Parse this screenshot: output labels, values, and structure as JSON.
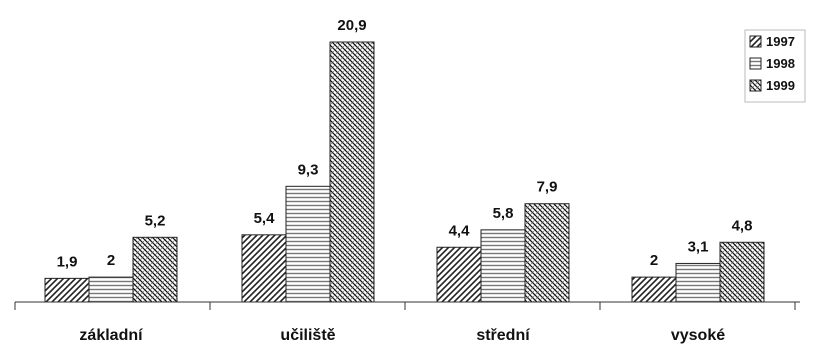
{
  "chart_data": {
    "type": "bar",
    "categories": [
      "základní",
      "učiliště",
      "střední",
      "vysoké"
    ],
    "series": [
      {
        "name": "1997",
        "values": [
          1.9,
          5.4,
          4.4,
          2
        ],
        "labels": [
          "1,9",
          "5,4",
          "4,4",
          "2"
        ]
      },
      {
        "name": "1998",
        "values": [
          2,
          9.3,
          5.8,
          3.1
        ],
        "labels": [
          "2",
          "9,3",
          "5,8",
          "3,1"
        ]
      },
      {
        "name": "1999",
        "values": [
          5.2,
          20.9,
          7.9,
          4.8
        ],
        "labels": [
          "5,2",
          "20,9",
          "7,9",
          "4,8"
        ]
      }
    ],
    "title": "",
    "xlabel": "",
    "ylabel": "",
    "ylim": [
      0,
      21
    ],
    "grid": false,
    "legend": "top-right"
  }
}
